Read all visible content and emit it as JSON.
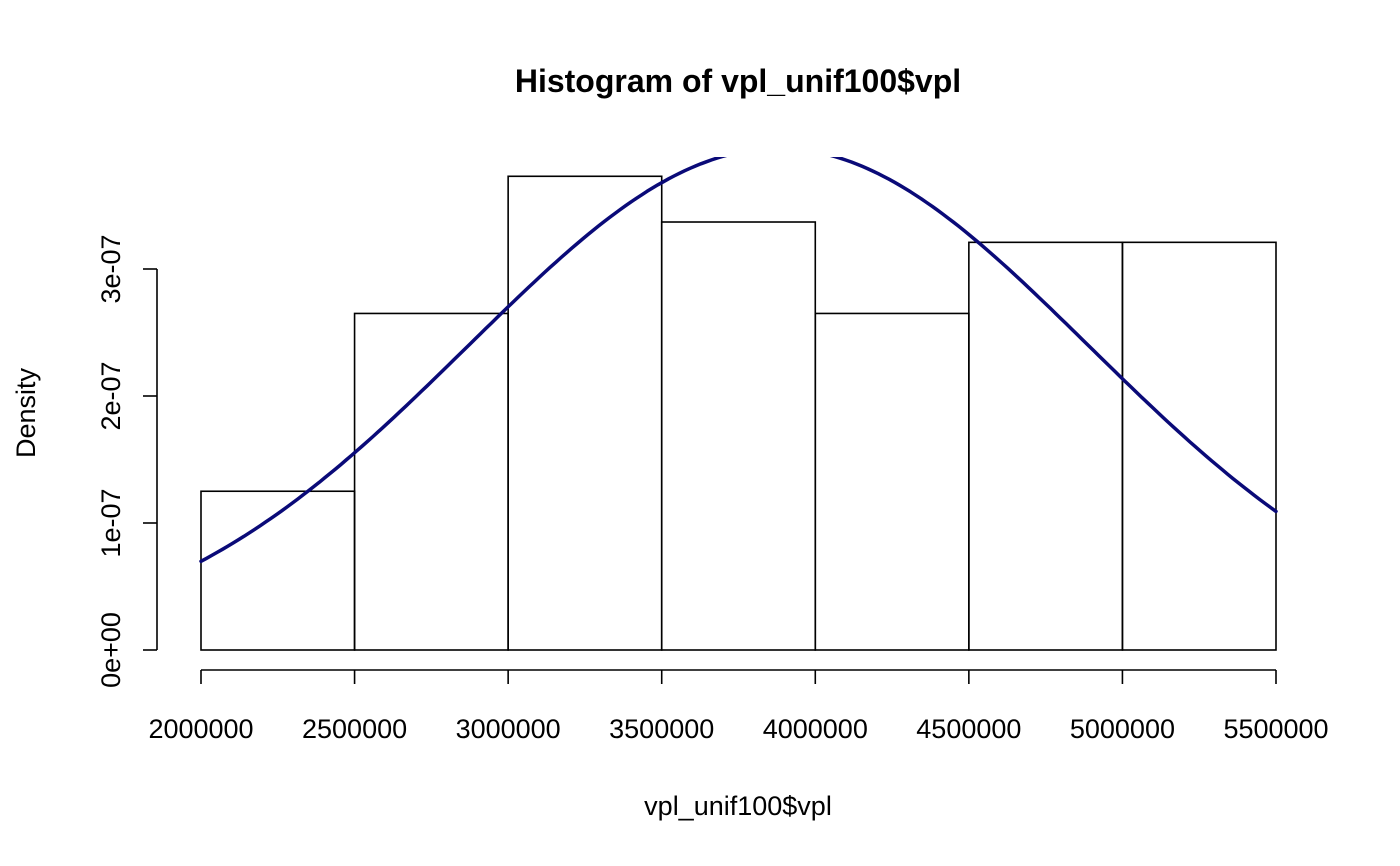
{
  "chart_data": {
    "type": "bar",
    "subtype": "histogram",
    "title": "Histogram of vpl_unif100$vpl",
    "xlabel": "vpl_unif100$vpl",
    "ylabel": "Density",
    "xlim": [
      2000000,
      5500000
    ],
    "ylim": [
      0,
      3.9e-07
    ],
    "x_ticks": [
      2000000,
      2500000,
      3000000,
      3500000,
      4000000,
      4500000,
      5000000,
      5500000
    ],
    "x_tick_labels": [
      "2000000",
      "2500000",
      "3000000",
      "3500000",
      "4000000",
      "4500000",
      "5000000",
      "5500000"
    ],
    "y_ticks": [
      0,
      1e-07,
      2e-07,
      3e-07
    ],
    "y_tick_labels": [
      "0e+00",
      "1e-07",
      "2e-07",
      "3e-07"
    ],
    "bins": [
      {
        "from": 2000000,
        "to": 2500000,
        "density": 1.25e-07
      },
      {
        "from": 2500000,
        "to": 3000000,
        "density": 2.65e-07
      },
      {
        "from": 3000000,
        "to": 3500000,
        "density": 3.73e-07
      },
      {
        "from": 3500000,
        "to": 4000000,
        "density": 3.37e-07
      },
      {
        "from": 4000000,
        "to": 4500000,
        "density": 2.65e-07
      },
      {
        "from": 4500000,
        "to": 5000000,
        "density": 3.21e-07
      },
      {
        "from": 5000000,
        "to": 5500000,
        "density": 3.21e-07
      }
    ],
    "curve": {
      "color": "#0a0a78",
      "mean": 3880000,
      "sd": 1010000
    },
    "grid": false,
    "legend": "none"
  }
}
